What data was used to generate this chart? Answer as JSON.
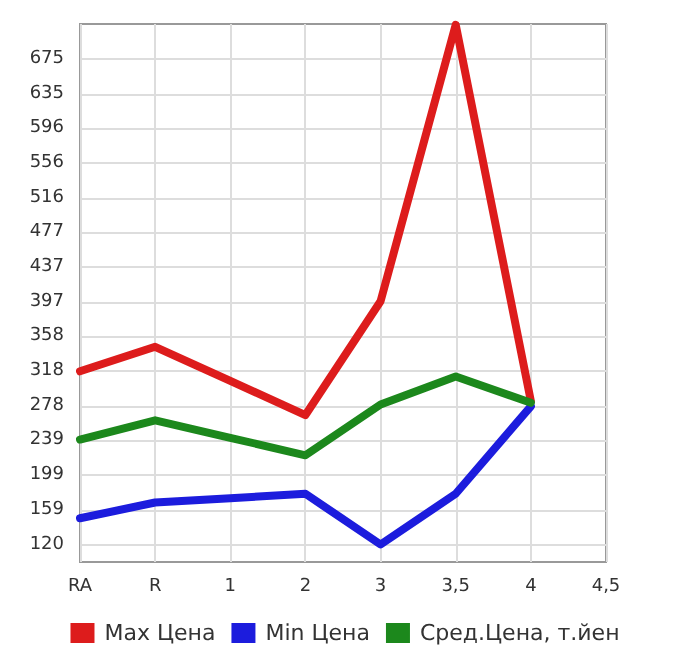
{
  "chart_data": {
    "type": "line",
    "categories": [
      "RA",
      "R",
      "1",
      "2",
      "3",
      "3,5",
      "4",
      "4,5"
    ],
    "series": [
      {
        "name": "Max Цена",
        "color": "#dd1c1c",
        "values": [
          318,
          346,
          307,
          268,
          398,
          714,
          284,
          null
        ]
      },
      {
        "name": "Min Цена",
        "color": "#1c1cdd",
        "values": [
          150,
          168,
          173,
          178,
          120,
          178,
          278,
          null
        ]
      },
      {
        "name": "Сред.Цена, т.йен",
        "color": "#1c881c",
        "values": [
          240,
          262,
          242,
          222,
          280,
          312,
          282,
          null
        ]
      }
    ],
    "ylim": [
      100,
      715
    ],
    "yticks": [
      120,
      159,
      199,
      239,
      278,
      318,
      358,
      397,
      437,
      477,
      516,
      556,
      596,
      635,
      675
    ],
    "grid": true,
    "legend": "bottom",
    "marker": "none",
    "line_style": "solid"
  }
}
